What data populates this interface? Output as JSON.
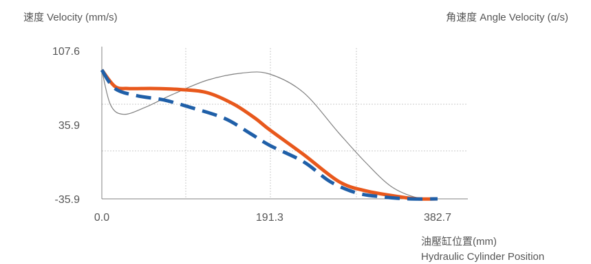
{
  "chart_data": {
    "type": "line",
    "ylabel_left": "速度 Velocity (mm/s)",
    "ylabel_right": "角速度 Angle Velocity (α/s)",
    "xlabel_line1": "油壓缸位置(mm)",
    "xlabel_line2": "Hydraulic Cylinder Position",
    "xlim": [
      0.0,
      382.7
    ],
    "ylim": [
      -35.9,
      107.6
    ],
    "x_ticks": [
      0.0,
      191.3,
      382.7
    ],
    "x_tick_labels": [
      "0.0",
      "191.3",
      "382.7"
    ],
    "y_ticks": [
      -35.9,
      35.9,
      107.6
    ],
    "y_tick_labels": [
      "-35.9",
      "35.9",
      "107.6"
    ],
    "grid": true,
    "series": [
      {
        "color": "#808080",
        "style": "thin-solid",
        "points": [
          [
            0,
            89
          ],
          [
            10,
            55
          ],
          [
            25,
            46
          ],
          [
            50,
            53
          ],
          [
            80,
            65
          ],
          [
            120,
            79
          ],
          [
            160,
            86
          ],
          [
            191.3,
            85
          ],
          [
            230,
            67
          ],
          [
            270,
            28
          ],
          [
            300,
            0
          ],
          [
            330,
            -24
          ],
          [
            360,
            -35
          ],
          [
            382.7,
            -35.9
          ]
        ]
      },
      {
        "color": "#e8581c",
        "style": "thick-solid",
        "points": [
          [
            0,
            89
          ],
          [
            15,
            73
          ],
          [
            30,
            71
          ],
          [
            60,
            71
          ],
          [
            90,
            70
          ],
          [
            120,
            67
          ],
          [
            150,
            56
          ],
          [
            175,
            42
          ],
          [
            191.3,
            31
          ],
          [
            230,
            7
          ],
          [
            270,
            -19
          ],
          [
            300,
            -28
          ],
          [
            340,
            -34
          ],
          [
            360,
            -35.9
          ],
          [
            382.7,
            -35.9
          ]
        ]
      },
      {
        "color": "#1f5fa8",
        "style": "thick-dashed",
        "points": [
          [
            0,
            89
          ],
          [
            15,
            71
          ],
          [
            40,
            64
          ],
          [
            70,
            60
          ],
          [
            100,
            53
          ],
          [
            140,
            42
          ],
          [
            170,
            27
          ],
          [
            191.3,
            16
          ],
          [
            230,
            0
          ],
          [
            260,
            -19
          ],
          [
            290,
            -30
          ],
          [
            320,
            -34
          ],
          [
            350,
            -35.9
          ],
          [
            382.7,
            -35.9
          ]
        ]
      }
    ]
  }
}
